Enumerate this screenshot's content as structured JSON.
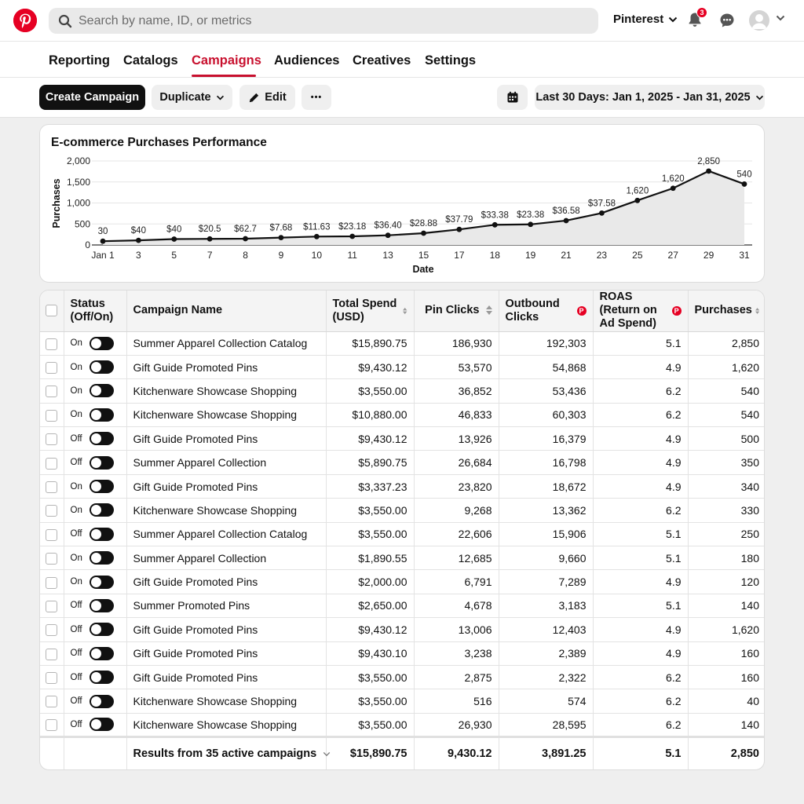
{
  "search": {
    "placeholder": "Search by name, ID, or metrics"
  },
  "account": {
    "name": "Pinterest",
    "notifications": "3"
  },
  "nav": {
    "tabs": [
      "Reporting",
      "Catalogs",
      "Campaigns",
      "Audiences",
      "Creatives",
      "Settings"
    ],
    "active": "Campaigns"
  },
  "toolbar": {
    "create": "Create Campaign",
    "duplicate": "Duplicate",
    "edit": "Edit",
    "more": "•••",
    "date_range": "Last 30 Days: Jan 1, 2025 - Jan 31, 2025"
  },
  "colors": {
    "brand": "#e60023",
    "active_tab": "#c8102e"
  },
  "chart_data": {
    "type": "line",
    "title": "E-commerce Purchases Performance",
    "xlabel": "Date",
    "ylabel": "Purchases",
    "x": [
      "Jan 1",
      "3",
      "5",
      "7",
      "8",
      "9",
      "10",
      "11",
      "13",
      "15",
      "17",
      "18",
      "19",
      "21",
      "23",
      "25",
      "27",
      "29",
      "31"
    ],
    "values": [
      90,
      110,
      140,
      145,
      150,
      175,
      200,
      205,
      230,
      280,
      370,
      480,
      490,
      580,
      760,
      1060,
      1350,
      1760,
      1450
    ],
    "labels": [
      "30",
      "$40",
      "$40",
      "$20.5",
      "$62.7",
      "$7.68",
      "$11.63",
      "$23.18",
      "$36.40",
      "$28.88",
      "$37.79",
      "$33.38",
      "$23.38",
      "$36.58",
      "$37.58",
      "1,620",
      "1,620",
      "2,850",
      "540"
    ],
    "yticks": [
      "0",
      "500",
      "1,000",
      "1,500",
      "2,000"
    ],
    "ylim": [
      0,
      2000
    ],
    "grid": true,
    "area_fill": true
  },
  "table": {
    "headers": {
      "status": "Status (Off/On)",
      "name": "Campaign Name",
      "spend": "Total Spend (USD)",
      "pin_clicks": "Pin Clicks",
      "outbound": "Outbound Clicks",
      "roas": "ROAS (Return on Ad Spend)",
      "purchases": "Purchases"
    },
    "rows": [
      {
        "status": "On",
        "name": "Summer Apparel Collection Catalog",
        "spend": "$15,890.75",
        "pin_clicks": "186,930",
        "outbound": "192,303",
        "roas": "5.1",
        "purchases": "2,850"
      },
      {
        "status": "On",
        "name": "Gift Guide Promoted Pins",
        "spend": "$9,430.12",
        "pin_clicks": "53,570",
        "outbound": "54,868",
        "roas": "4.9",
        "purchases": "1,620"
      },
      {
        "status": "On",
        "name": "Kitchenware Showcase Shopping",
        "spend": "$3,550.00",
        "pin_clicks": "36,852",
        "outbound": "53,436",
        "roas": "6.2",
        "purchases": "540"
      },
      {
        "status": "On",
        "name": "Kitchenware Showcase Shopping",
        "spend": "$10,880.00",
        "pin_clicks": "46,833",
        "outbound": "60,303",
        "roas": "6.2",
        "purchases": "540"
      },
      {
        "status": "Off",
        "name": "Gift Guide Promoted Pins",
        "spend": "$9,430.12",
        "pin_clicks": "13,926",
        "outbound": "16,379",
        "roas": "4.9",
        "purchases": "500"
      },
      {
        "status": "Off",
        "name": "Summer Apparel Collection",
        "spend": "$5,890.75",
        "pin_clicks": "26,684",
        "outbound": "16,798",
        "roas": "4.9",
        "purchases": "350"
      },
      {
        "status": "On",
        "name": "Gift Guide Promoted Pins",
        "spend": "$3,337.23",
        "pin_clicks": "23,820",
        "outbound": "18,672",
        "roas": "4.9",
        "purchases": "340"
      },
      {
        "status": "On",
        "name": "Kitchenware Showcase Shopping",
        "spend": "$3,550.00",
        "pin_clicks": "9,268",
        "outbound": "13,362",
        "roas": "6.2",
        "purchases": "330"
      },
      {
        "status": "Off",
        "name": "Summer Apparel Collection Catalog",
        "spend": "$3,550.00",
        "pin_clicks": "22,606",
        "outbound": "15,906",
        "roas": "5.1",
        "purchases": "250"
      },
      {
        "status": "On",
        "name": "Summer Apparel Collection",
        "spend": "$1,890.55",
        "pin_clicks": "12,685",
        "outbound": "9,660",
        "roas": "5.1",
        "purchases": "180"
      },
      {
        "status": "On",
        "name": "Gift Guide Promoted Pins",
        "spend": "$2,000.00",
        "pin_clicks": "6,791",
        "outbound": "7,289",
        "roas": "4.9",
        "purchases": "120"
      },
      {
        "status": "Off",
        "name": "Summer Promoted Pins",
        "spend": "$2,650.00",
        "pin_clicks": "4,678",
        "outbound": "3,183",
        "roas": "5.1",
        "purchases": "140"
      },
      {
        "status": "Off",
        "name": "Gift Guide Promoted Pins",
        "spend": "$9,430.12",
        "pin_clicks": "13,006",
        "outbound": "12,403",
        "roas": "4.9",
        "purchases": "1,620"
      },
      {
        "status": "Off",
        "name": "Gift Guide Promoted Pins",
        "spend": "$9,430.10",
        "pin_clicks": "3,238",
        "outbound": "2,389",
        "roas": "4.9",
        "purchases": "160"
      },
      {
        "status": "Off",
        "name": "Gift Guide Promoted Pins",
        "spend": "$3,550.00",
        "pin_clicks": "2,875",
        "outbound": "2,322",
        "roas": "6.2",
        "purchases": "160"
      },
      {
        "status": "Off",
        "name": "Kitchenware Showcase Shopping",
        "spend": "$3,550.00",
        "pin_clicks": "516",
        "outbound": "574",
        "roas": "6.2",
        "purchases": "40"
      },
      {
        "status": "Off",
        "name": "Kitchenware Showcase Shopping",
        "spend": "$3,550.00",
        "pin_clicks": "26,930",
        "outbound": "28,595",
        "roas": "6.2",
        "purchases": "140"
      }
    ],
    "footer": {
      "label": "Results from 35 active campaigns",
      "spend": "$15,890.75",
      "pin_clicks": "9,430.12",
      "outbound": "3,891.25",
      "roas": "5.1",
      "purchases": "2,850"
    }
  }
}
